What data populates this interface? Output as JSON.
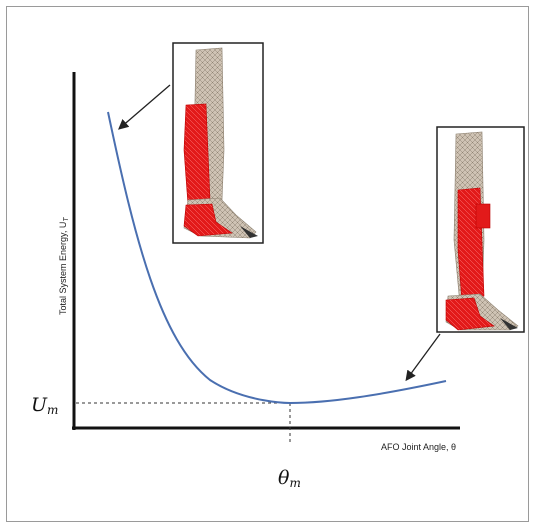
{
  "figure": {
    "y_axis_label": "Total System Energy, U",
    "y_axis_label_sub": "T",
    "x_axis_label": "AFO Joint Angle, θ",
    "u_min_label": "U",
    "u_min_sub": "m",
    "theta_min_label": "θ",
    "theta_min_sub": "m",
    "curve_color": "#4a6fb0",
    "orthosis_color": "#e02020"
  },
  "panels": [
    {
      "name": "stiff-orthosis",
      "icon": "leg-with-short-orthosis-icon"
    },
    {
      "name": "flexible-orthosis",
      "icon": "leg-with-long-orthosis-icon"
    }
  ]
}
